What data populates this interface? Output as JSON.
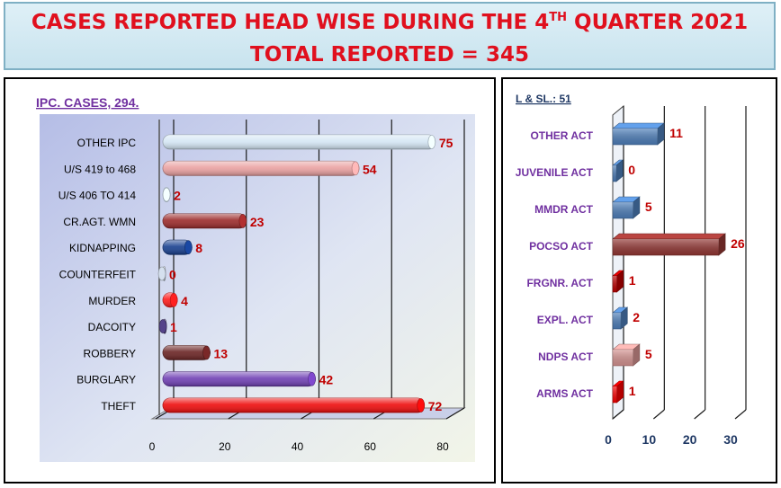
{
  "header": {
    "line1_pre": "CASES REPORTED HEAD WISE DURING THE 4",
    "line1_sup": "TH",
    "line1_post": " QUARTER 2021",
    "line2": "TOTAL REPORTED = 345"
  },
  "chart_data": [
    {
      "type": "bar",
      "orientation": "horizontal",
      "title": "IPC. CASES, 294.",
      "categories": [
        "OTHER IPC",
        "U/S 419 to 468",
        "U/S 406 TO 414",
        "CR.AGT. WMN",
        "KIDNAPPING",
        "COUNTERFEIT",
        "MURDER",
        "DACOITY",
        "ROBBERY",
        "BURGLARY",
        "THEFT"
      ],
      "values": [
        75,
        54,
        2,
        23,
        8,
        0,
        4,
        1,
        13,
        42,
        72
      ],
      "colors": [
        "#d4e6f4",
        "#eaa1a1",
        "#d4e6f4",
        "#9b2a2a",
        "#173f8f",
        "#b9c3cf",
        "#ff1c1c",
        "#4a3a78",
        "#6a2323",
        "#7040b4",
        "#ee0c0c"
      ],
      "label_color": "#c00000",
      "xlim": [
        0,
        80
      ],
      "xticks": [
        "0",
        "20",
        "40",
        "60",
        "80"
      ],
      "grid": true
    },
    {
      "type": "bar",
      "orientation": "horizontal",
      "title": "L & SL.: 51",
      "categories": [
        "OTHER ACT",
        "JUVENILE ACT",
        "MMDR ACT",
        "POCSO ACT",
        "FRGNR. ACT",
        "EXPL. ACT",
        "NDPS ACT",
        "ARMS ACT"
      ],
      "values": [
        11,
        0,
        5,
        26,
        1,
        2,
        5,
        1
      ],
      "colors": [
        "#4f81bd",
        "#4f81bd",
        "#4f81bd",
        "#953734",
        "#c00000",
        "#4f81bd",
        "#d99694",
        "#ff0000"
      ],
      "label_color": "#c00000",
      "category_color": "#7030a0",
      "xlim": [
        0,
        30
      ],
      "xticks": [
        "0",
        "10",
        "20",
        "30"
      ],
      "grid": true
    }
  ]
}
